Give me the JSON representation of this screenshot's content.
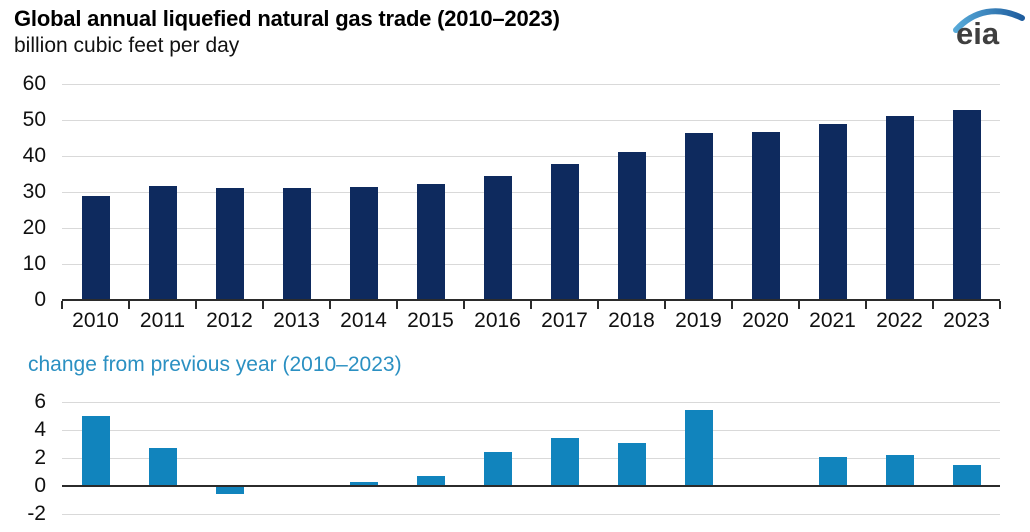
{
  "header": {
    "title": "Global annual liquefied natural gas trade (2010–2023)",
    "subtitle": "billion cubic feet per day",
    "logo_text": "eia"
  },
  "colors": {
    "navy_bar": "#0e2a5e",
    "blue_bar": "#1184bd",
    "blue_text": "#2b90c2",
    "gridline": "#d9d9d9",
    "axis": "#2b2b2b",
    "text": "#111111",
    "logo_text": "#3f3f3f",
    "logo_swoosh_start": "#56a9d8",
    "logo_swoosh_end": "#1f5d9e"
  },
  "chart_data": [
    {
      "type": "bar",
      "title": "Global annual liquefied natural gas trade (2010–2023)",
      "ylabel": "billion cubic feet per day",
      "xlabel": "",
      "categories": [
        "2010",
        "2011",
        "2012",
        "2013",
        "2014",
        "2015",
        "2016",
        "2017",
        "2018",
        "2019",
        "2020",
        "2021",
        "2022",
        "2023"
      ],
      "values": [
        28.9,
        31.6,
        31.0,
        31.1,
        31.4,
        32.1,
        34.5,
        37.9,
        41.1,
        46.5,
        46.7,
        48.9,
        51.1,
        52.7
      ],
      "ylim": [
        0,
        60
      ],
      "yticks": [
        0,
        10,
        20,
        30,
        40,
        50,
        60
      ],
      "grid": true,
      "legend": "none",
      "bar_color": "#0e2a5e"
    },
    {
      "type": "bar",
      "title": "change from previous year (2010–2023)",
      "ylabel": "",
      "xlabel": "",
      "categories": [
        "2010",
        "2011",
        "2012",
        "2013",
        "2014",
        "2015",
        "2016",
        "2017",
        "2018",
        "2019",
        "2020",
        "2021",
        "2022",
        "2023"
      ],
      "values": [
        5.0,
        2.7,
        -0.6,
        0.1,
        0.3,
        0.7,
        2.4,
        3.4,
        3.1,
        5.4,
        0.1,
        2.1,
        2.2,
        1.5
      ],
      "ylim": [
        -2,
        6
      ],
      "yticks": [
        -2,
        0,
        2,
        4,
        6
      ],
      "grid": true,
      "legend": "none",
      "bar_color": "#1184bd"
    }
  ]
}
